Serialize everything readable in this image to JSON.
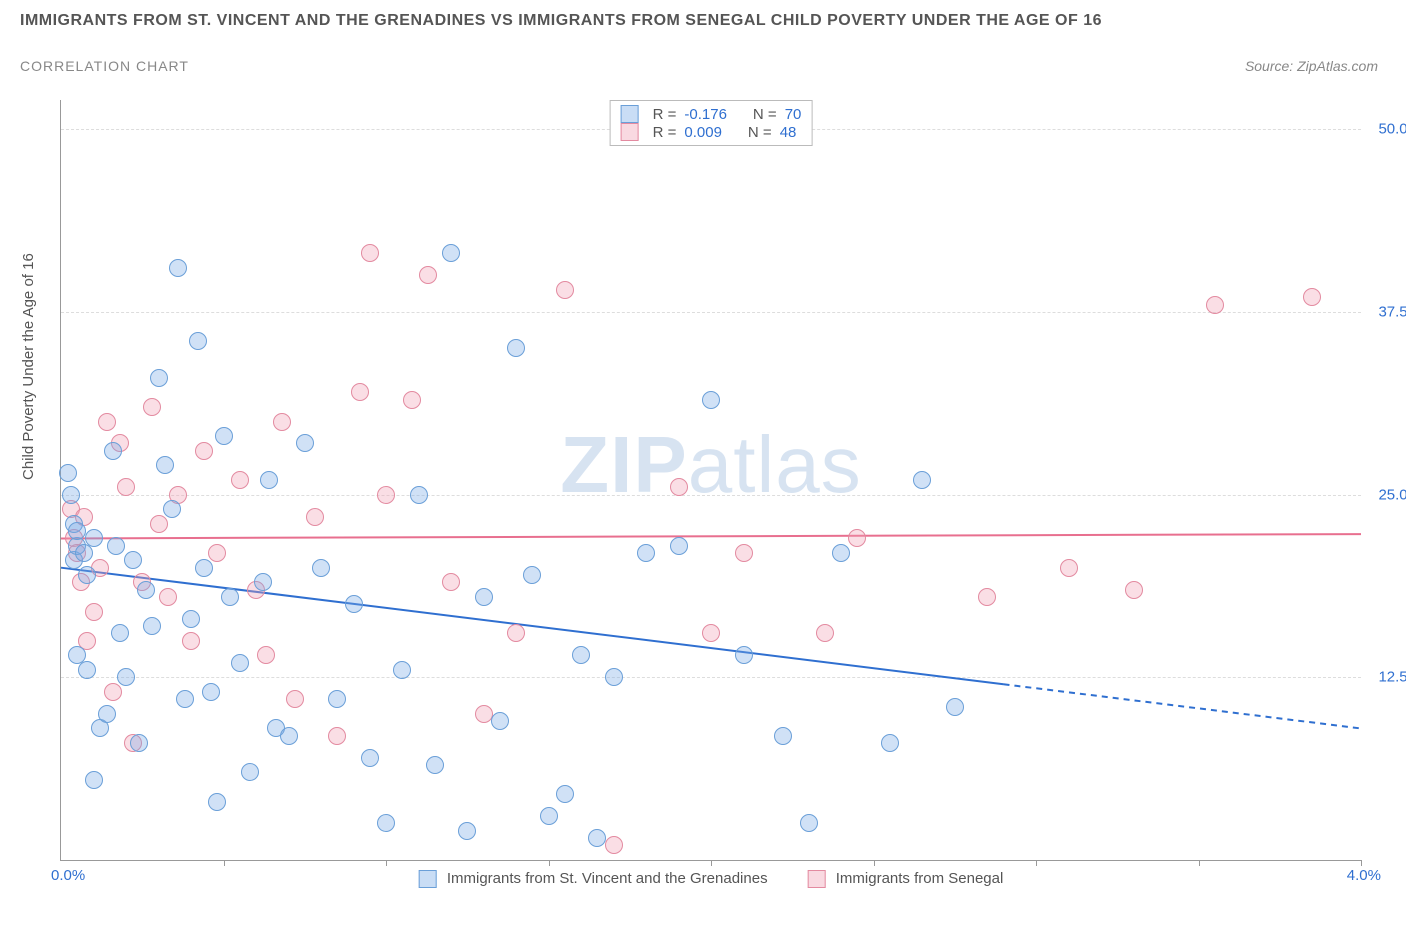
{
  "header": {
    "title": "IMMIGRANTS FROM ST. VINCENT AND THE GRENADINES VS IMMIGRANTS FROM SENEGAL CHILD POVERTY UNDER THE AGE OF 16",
    "subtitle": "CORRELATION CHART",
    "source": "Source: ZipAtlas.com"
  },
  "watermark": {
    "zip": "ZIP",
    "atlas": "atlas"
  },
  "chart": {
    "type": "scatter",
    "y_label": "Child Poverty Under the Age of 16",
    "xlim": [
      0.0,
      4.0
    ],
    "ylim": [
      0.0,
      52.0
    ],
    "y_ticks": [
      12.5,
      25.0,
      37.5,
      50.0
    ],
    "y_tick_labels": [
      "12.5%",
      "25.0%",
      "37.5%",
      "50.0%"
    ],
    "x_tick_marks": [
      0.5,
      1.0,
      1.5,
      2.0,
      2.5,
      3.0,
      3.5,
      4.0
    ],
    "x_min_label": "0.0%",
    "x_max_label": "4.0%",
    "grid_color": "#dddddd",
    "axis_color": "#999999",
    "label_fontsize": 15,
    "tick_color": "#2f6fd0",
    "background_color": "#ffffff",
    "point_radius": 9,
    "series": {
      "blue": {
        "label": "Immigrants from St. Vincent and the Grenadines",
        "fill": "rgba(120,170,230,0.35)",
        "stroke": "#6a9fd8",
        "R": "-0.176",
        "N": "70",
        "trend": {
          "y_at_x0": 20.0,
          "y_at_x4": 9.0,
          "solid_until_x": 2.9,
          "stroke": "#2f6fd0",
          "width": 2
        },
        "points": [
          [
            0.02,
            26.5
          ],
          [
            0.03,
            25.0
          ],
          [
            0.04,
            23.0
          ],
          [
            0.04,
            20.5
          ],
          [
            0.05,
            21.5
          ],
          [
            0.05,
            22.5
          ],
          [
            0.05,
            14.0
          ],
          [
            0.07,
            21.0
          ],
          [
            0.08,
            19.5
          ],
          [
            0.08,
            13.0
          ],
          [
            0.1,
            22.0
          ],
          [
            0.1,
            5.5
          ],
          [
            0.12,
            9.0
          ],
          [
            0.14,
            10.0
          ],
          [
            0.16,
            28.0
          ],
          [
            0.17,
            21.5
          ],
          [
            0.18,
            15.5
          ],
          [
            0.2,
            12.5
          ],
          [
            0.22,
            20.5
          ],
          [
            0.24,
            8.0
          ],
          [
            0.26,
            18.5
          ],
          [
            0.28,
            16.0
          ],
          [
            0.3,
            33.0
          ],
          [
            0.32,
            27.0
          ],
          [
            0.34,
            24.0
          ],
          [
            0.36,
            40.5
          ],
          [
            0.38,
            11.0
          ],
          [
            0.4,
            16.5
          ],
          [
            0.42,
            35.5
          ],
          [
            0.44,
            20.0
          ],
          [
            0.46,
            11.5
          ],
          [
            0.5,
            29.0
          ],
          [
            0.52,
            18.0
          ],
          [
            0.55,
            13.5
          ],
          [
            0.58,
            6.0
          ],
          [
            0.62,
            19.0
          ],
          [
            0.64,
            26.0
          ],
          [
            0.66,
            9.0
          ],
          [
            0.7,
            8.5
          ],
          [
            0.75,
            28.5
          ],
          [
            0.8,
            20.0
          ],
          [
            0.85,
            11.0
          ],
          [
            0.9,
            17.5
          ],
          [
            0.95,
            7.0
          ],
          [
            1.0,
            2.5
          ],
          [
            1.05,
            13.0
          ],
          [
            1.1,
            25.0
          ],
          [
            1.15,
            6.5
          ],
          [
            1.2,
            41.5
          ],
          [
            1.25,
            2.0
          ],
          [
            1.3,
            18.0
          ],
          [
            1.35,
            9.5
          ],
          [
            1.4,
            35.0
          ],
          [
            1.45,
            19.5
          ],
          [
            1.55,
            4.5
          ],
          [
            1.6,
            14.0
          ],
          [
            1.65,
            1.5
          ],
          [
            1.7,
            12.5
          ],
          [
            1.8,
            21.0
          ],
          [
            1.9,
            21.5
          ],
          [
            2.0,
            31.5
          ],
          [
            2.1,
            14.0
          ],
          [
            2.22,
            8.5
          ],
          [
            2.3,
            2.5
          ],
          [
            2.4,
            21.0
          ],
          [
            2.55,
            8.0
          ],
          [
            2.75,
            10.5
          ],
          [
            2.65,
            26.0
          ],
          [
            1.5,
            3.0
          ],
          [
            0.48,
            4.0
          ]
        ]
      },
      "pink": {
        "label": "Immigrants from Senegal",
        "fill": "rgba(240,160,180,0.35)",
        "stroke": "#e38aa0",
        "R": "0.009",
        "N": "48",
        "trend": {
          "y_at_x0": 22.0,
          "y_at_x4": 22.3,
          "solid_until_x": 4.0,
          "stroke": "#e86f8f",
          "width": 2
        },
        "points": [
          [
            0.03,
            24.0
          ],
          [
            0.04,
            22.0
          ],
          [
            0.05,
            21.0
          ],
          [
            0.06,
            19.0
          ],
          [
            0.07,
            23.5
          ],
          [
            0.08,
            15.0
          ],
          [
            0.1,
            17.0
          ],
          [
            0.12,
            20.0
          ],
          [
            0.14,
            30.0
          ],
          [
            0.16,
            11.5
          ],
          [
            0.18,
            28.5
          ],
          [
            0.2,
            25.5
          ],
          [
            0.22,
            8.0
          ],
          [
            0.25,
            19.0
          ],
          [
            0.28,
            31.0
          ],
          [
            0.3,
            23.0
          ],
          [
            0.33,
            18.0
          ],
          [
            0.36,
            25.0
          ],
          [
            0.4,
            15.0
          ],
          [
            0.44,
            28.0
          ],
          [
            0.48,
            21.0
          ],
          [
            0.55,
            26.0
          ],
          [
            0.6,
            18.5
          ],
          [
            0.63,
            14.0
          ],
          [
            0.68,
            30.0
          ],
          [
            0.72,
            11.0
          ],
          [
            0.78,
            23.5
          ],
          [
            0.85,
            8.5
          ],
          [
            0.92,
            32.0
          ],
          [
            1.0,
            25.0
          ],
          [
            1.08,
            31.5
          ],
          [
            1.13,
            40.0
          ],
          [
            1.2,
            19.0
          ],
          [
            1.3,
            10.0
          ],
          [
            1.4,
            15.5
          ],
          [
            1.55,
            39.0
          ],
          [
            1.7,
            1.0
          ],
          [
            1.9,
            25.5
          ],
          [
            2.0,
            15.5
          ],
          [
            2.1,
            21.0
          ],
          [
            2.35,
            15.5
          ],
          [
            2.45,
            22.0
          ],
          [
            2.85,
            18.0
          ],
          [
            3.1,
            20.0
          ],
          [
            3.3,
            18.5
          ],
          [
            3.55,
            38.0
          ],
          [
            3.85,
            38.5
          ],
          [
            0.95,
            41.5
          ]
        ]
      }
    },
    "top_legend": {
      "R_label": "R =",
      "N_label": "N ="
    }
  }
}
